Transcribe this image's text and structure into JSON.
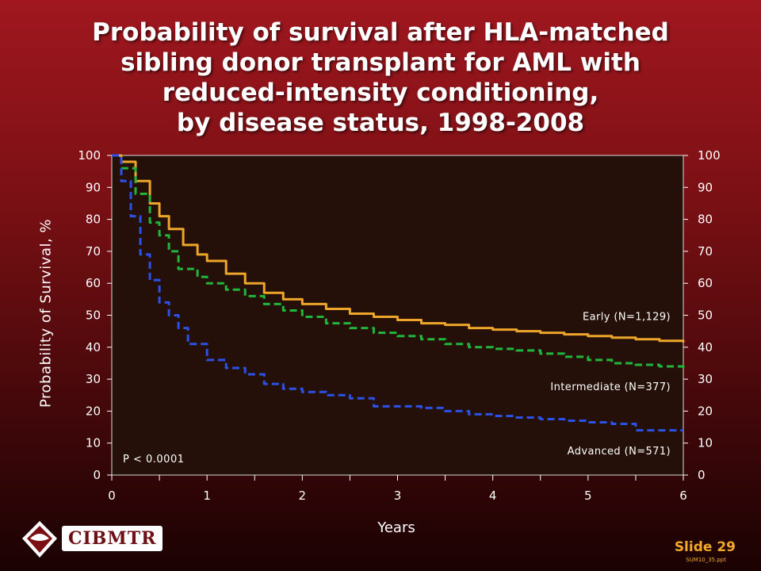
{
  "slide": {
    "title": "Probability of survival after HLA-matched\nsibling donor transplant for AML with\nreduced-intensity conditioning,\nby disease status, 1998-2008",
    "slide_number": "Slide 29",
    "file_name": "SUM10_35.ppt",
    "logo_text": "CIBMTR"
  },
  "colors": {
    "plot_background": "#241008",
    "early": "#eda52a",
    "intermediate": "#22b53c",
    "advanced": "#2a52e8",
    "slide_number": "#f2a92a"
  },
  "chart_data": {
    "type": "line",
    "title": "Probability of survival after HLA-matched sibling donor transplant for AML with reduced-intensity conditioning, by disease status, 1998-2008",
    "xlabel": "Years",
    "ylabel": "Probability of Survival, %",
    "xlim": [
      0,
      6
    ],
    "ylim": [
      0,
      100
    ],
    "x_ticks": [
      "0",
      "1",
      "2",
      "3",
      "4",
      "5",
      "6"
    ],
    "y_ticks": [
      "0",
      "10",
      "20",
      "30",
      "40",
      "50",
      "60",
      "70",
      "80",
      "90",
      "100"
    ],
    "right_y_ticks": [
      "0",
      "10",
      "20",
      "30",
      "40",
      "50",
      "60",
      "70",
      "80",
      "90",
      "100"
    ],
    "grid": false,
    "annotation": "P < 0.0001",
    "series": [
      {
        "name": "Early (N=1,129)",
        "style": "solid",
        "x": [
          0,
          0.1,
          0.25,
          0.4,
          0.5,
          0.6,
          0.75,
          0.9,
          1.0,
          1.2,
          1.4,
          1.6,
          1.8,
          2.0,
          2.25,
          2.5,
          2.75,
          3.0,
          3.25,
          3.5,
          3.75,
          4.0,
          4.25,
          4.5,
          4.75,
          5.0,
          5.25,
          5.5,
          5.75,
          6.0
        ],
        "y": [
          100,
          98,
          92,
          85,
          81,
          77,
          72,
          69,
          67,
          63,
          60,
          57,
          55,
          53.5,
          52,
          50.5,
          49.5,
          48.5,
          47.5,
          47,
          46,
          45.5,
          45,
          44.5,
          44,
          43.5,
          43,
          42.5,
          42,
          41.5
        ]
      },
      {
        "name": "Intermediate (N=377)",
        "style": "dashed",
        "x": [
          0,
          0.1,
          0.25,
          0.4,
          0.5,
          0.6,
          0.7,
          0.9,
          1.0,
          1.2,
          1.4,
          1.6,
          1.8,
          2.0,
          2.25,
          2.5,
          2.75,
          3.0,
          3.25,
          3.5,
          3.75,
          4.0,
          4.25,
          4.5,
          4.75,
          5.0,
          5.25,
          5.5,
          5.75,
          6.0
        ],
        "y": [
          100,
          96,
          88,
          79,
          75,
          70,
          64.5,
          62,
          60,
          58,
          56,
          53.5,
          51.5,
          49.5,
          47.5,
          46,
          44.5,
          43.5,
          42.5,
          41,
          40,
          39.5,
          39,
          38,
          37,
          36,
          35,
          34.5,
          34,
          33.5
        ]
      },
      {
        "name": "Advanced (N=571)",
        "style": "dashed",
        "x": [
          0,
          0.1,
          0.2,
          0.3,
          0.4,
          0.5,
          0.6,
          0.7,
          0.8,
          1.0,
          1.2,
          1.4,
          1.6,
          1.8,
          2.0,
          2.25,
          2.5,
          2.75,
          3.0,
          3.25,
          3.5,
          3.75,
          4.0,
          4.25,
          4.5,
          4.75,
          5.0,
          5.25,
          5.5,
          5.75,
          6.0
        ],
        "y": [
          100,
          92,
          81,
          69,
          61,
          54,
          50,
          46,
          41,
          36,
          33.5,
          31.5,
          28.5,
          27,
          26,
          25,
          24,
          21.5,
          21.5,
          21,
          20,
          19,
          18.5,
          18,
          17.5,
          17,
          16.5,
          16,
          14,
          14,
          14
        ]
      }
    ]
  }
}
